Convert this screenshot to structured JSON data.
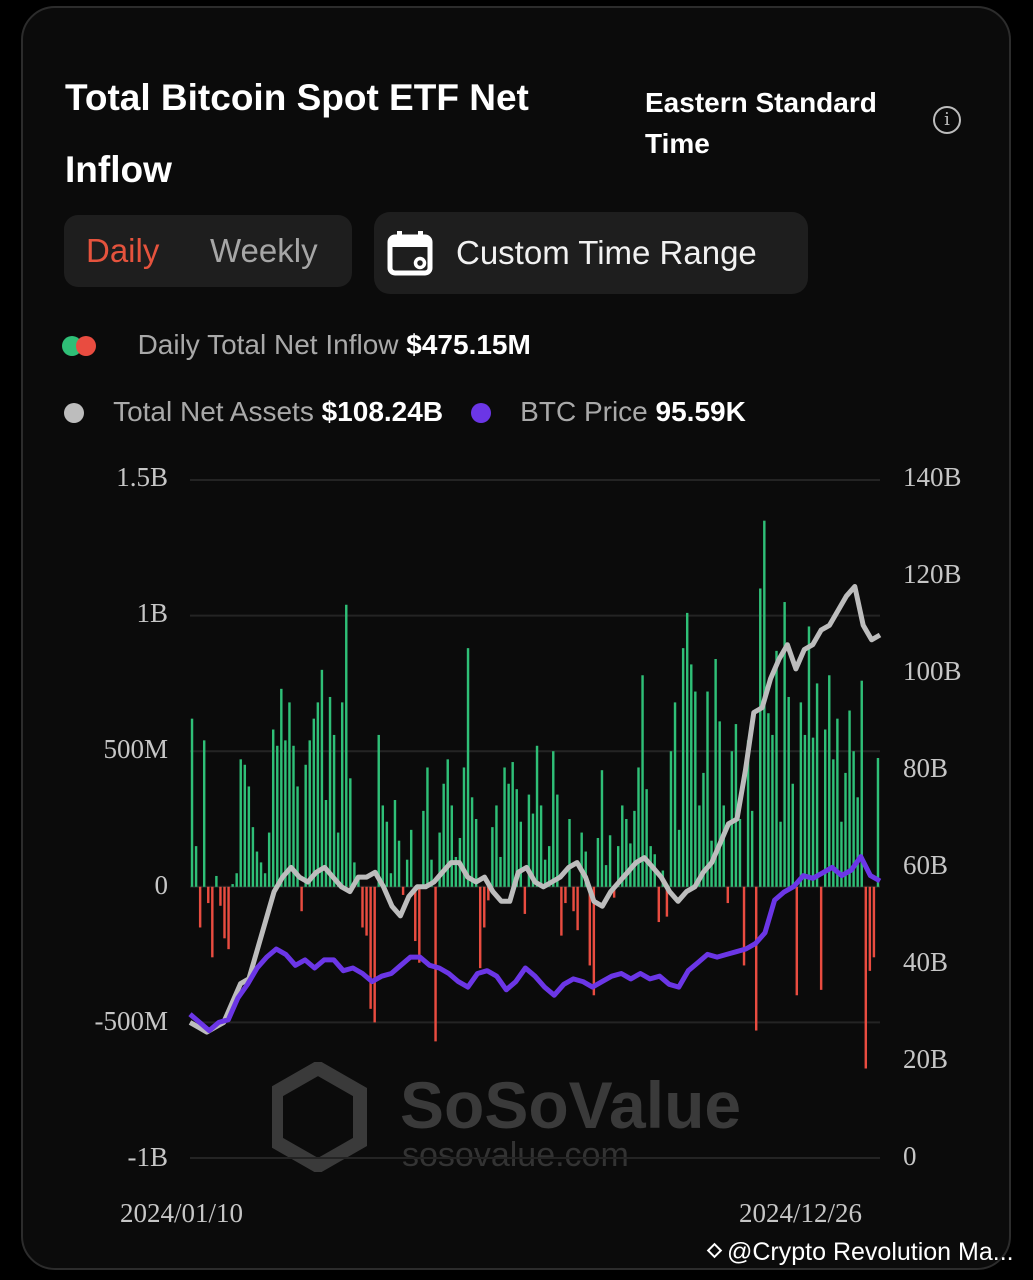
{
  "header": {
    "title": "Total Bitcoin Spot ETF Net Inflow",
    "timezone": "Eastern Standard Time",
    "info_icon": "info-circle-icon"
  },
  "controls": {
    "tabs": [
      {
        "label": "Daily",
        "active": true
      },
      {
        "label": "Weekly",
        "active": false
      }
    ],
    "custom_range_label": "Custom Time Range",
    "custom_range_icon": "calendar-icon"
  },
  "legend": {
    "inflow_label": "Daily Total Net Inflow",
    "inflow_value": "$475.15M",
    "assets_label": "Total Net Assets",
    "assets_value": "$108.24B",
    "price_label": "BTC Price",
    "price_value": "95.59K"
  },
  "colors": {
    "positive": "#2fbf77",
    "negative": "#e94c40",
    "assets_line": "#bdbdbd",
    "price_line": "#6b36e6",
    "active_tab": "#e5533d"
  },
  "watermark": {
    "brand": "SoSoValue",
    "url": "sosovalue.com"
  },
  "credit": "@Crypto Revolution Ma...",
  "chart_data": {
    "type": "bar",
    "title": "Total Bitcoin Spot ETF Net Inflow",
    "x_start": "2024/01/10",
    "x_end": "2024/12/26",
    "left_axis": {
      "ticks": [
        "1.5B",
        "1B",
        "500M",
        "0",
        "-500M",
        "-1B"
      ],
      "range": [
        -1000,
        1500
      ],
      "unit": "USD M"
    },
    "right_axis": {
      "ticks": [
        "140B",
        "120B",
        "100B",
        "80B",
        "60B",
        "40B",
        "20B",
        "0"
      ],
      "range": [
        0,
        140
      ],
      "unit": "USD B"
    },
    "series": [
      {
        "name": "Daily Total Net Inflow (M)",
        "type": "bar",
        "values": [
          620,
          150,
          -150,
          540,
          -60,
          -260,
          40,
          -70,
          -190,
          -230,
          10,
          50,
          470,
          450,
          370,
          220,
          130,
          90,
          50,
          200,
          580,
          520,
          730,
          540,
          680,
          520,
          370,
          -90,
          450,
          540,
          620,
          680,
          800,
          320,
          700,
          560,
          200,
          680,
          1040,
          400,
          90,
          40,
          -150,
          -180,
          -450,
          -500,
          560,
          300,
          240,
          50,
          320,
          170,
          -30,
          100,
          210,
          -200,
          -280,
          280,
          440,
          100,
          -570,
          200,
          380,
          470,
          300,
          110,
          180,
          440,
          880,
          330,
          250,
          -300,
          -150,
          -50,
          220,
          300,
          110,
          440,
          380,
          460,
          360,
          240,
          -100,
          340,
          270,
          520,
          300,
          100,
          150,
          500,
          340,
          -180,
          -60,
          250,
          -90,
          -160,
          200,
          130,
          -290,
          -400,
          180,
          430,
          80,
          190,
          -40,
          150,
          300,
          250,
          160,
          280,
          440,
          780,
          360,
          150,
          120,
          -130,
          60,
          -110,
          500,
          680,
          210,
          880,
          1010,
          820,
          720,
          300,
          420,
          720,
          170,
          840,
          610,
          300,
          -60,
          500,
          600,
          250,
          -290,
          540,
          280,
          -530,
          1100,
          1350,
          640,
          560,
          870,
          240,
          1050,
          700,
          380,
          -400,
          680,
          560,
          960,
          550,
          750,
          -380,
          580,
          780,
          470,
          620,
          240,
          420,
          650,
          500,
          330,
          760,
          -670,
          -310,
          -260,
          475
        ]
      },
      {
        "name": "Total Net Assets (B)",
        "type": "line",
        "axis": "right",
        "values": [
          28,
          27,
          26,
          27,
          28,
          32,
          36,
          37,
          43,
          49,
          55,
          58,
          60,
          58,
          57,
          59,
          60,
          58,
          56,
          55,
          58,
          58,
          59,
          56,
          52,
          50,
          54,
          56,
          56,
          57,
          59,
          61,
          61,
          58,
          57,
          58,
          55,
          53,
          53,
          59,
          60,
          57,
          56,
          57,
          58,
          60,
          61,
          58,
          53,
          52,
          55,
          57,
          59,
          61,
          62,
          60,
          58,
          55,
          53,
          55,
          56,
          59,
          61,
          65,
          69,
          70,
          80,
          92,
          93,
          99,
          103,
          106,
          101,
          105,
          106,
          109,
          110,
          113,
          116,
          118,
          110,
          107,
          108
        ]
      },
      {
        "name": "BTC Price (K)",
        "type": "line",
        "axis": "right_scaled",
        "values": [
          46,
          43,
          40,
          43,
          44,
          52,
          57,
          63,
          67,
          70,
          68,
          64,
          66,
          63,
          66,
          66,
          62,
          63,
          61,
          58,
          60,
          61,
          64,
          67,
          67,
          64,
          63,
          61,
          58,
          56,
          61,
          62,
          60,
          55,
          58,
          63,
          60,
          56,
          53,
          57,
          59,
          58,
          56,
          58,
          60,
          61,
          59,
          61,
          59,
          60,
          57,
          56,
          62,
          65,
          68,
          67,
          68,
          69,
          70,
          72,
          76,
          88,
          91,
          93,
          97,
          96,
          98,
          100,
          97,
          99,
          104,
          97,
          95
        ]
      }
    ]
  }
}
